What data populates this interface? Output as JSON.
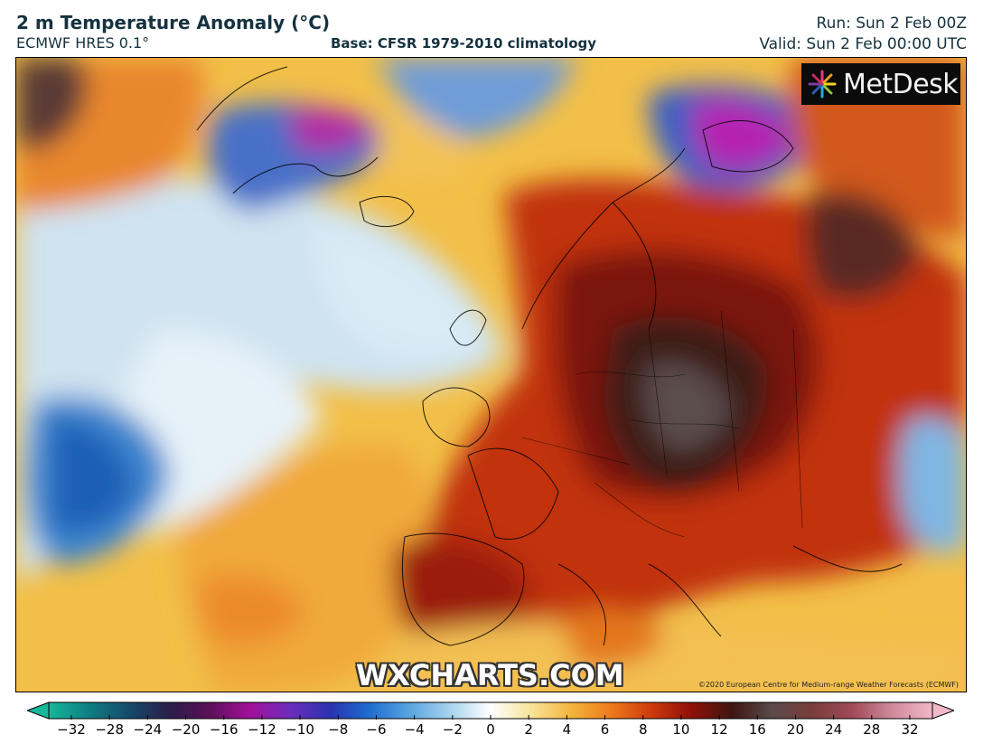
{
  "header": {
    "title": "2 m Temperature Anomaly (°C)",
    "model": "ECMWF HRES 0.1°",
    "base": "Base: CFSR 1979-2010 climatology",
    "run": "Run: Sun 2 Feb 00Z",
    "valid": "Valid: Sun 2 Feb 00:00 UTC"
  },
  "map": {
    "logo_text": "MetDesk",
    "logo_icon": "metdesk-starburst-icon",
    "watermark": "WXCHARTS.COM",
    "copyright": "©2020 European Centre for Medium-range Weather Forecasts (ECMWF)"
  },
  "colorbar": {
    "ticks": [
      "−32",
      "−28",
      "−24",
      "−20",
      "−16",
      "−12",
      "−10",
      "−8",
      "−6",
      "−4",
      "−2",
      "0",
      "2",
      "4",
      "6",
      "8",
      "10",
      "12",
      "16",
      "20",
      "24",
      "28",
      "32"
    ],
    "colors": [
      "#16b79a",
      "#0f7e83",
      "#154a6b",
      "#2a1d4a",
      "#5a1058",
      "#a2109a",
      "#6c2dbb",
      "#2a32b0",
      "#1f6ed0",
      "#5aa6e0",
      "#a9d3ee",
      "#ffffff",
      "#f7e49a",
      "#f4b43c",
      "#ed7a1c",
      "#cd3a0d",
      "#8f1008",
      "#3f1612",
      "#5a4a4a",
      "#7a3c3c",
      "#a04a58",
      "#d08a9c",
      "#f0b8c8"
    ]
  }
}
